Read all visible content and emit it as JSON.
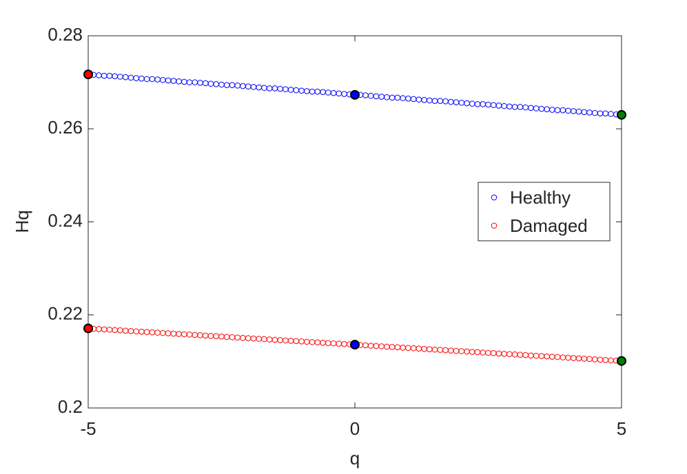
{
  "chart_data": {
    "type": "scatter",
    "x_label": "q",
    "y_label": "Hq",
    "x": [
      -5,
      -4.9,
      -4.8,
      -4.7,
      -4.6,
      -4.5,
      -4.4,
      -4.3,
      -4.2,
      -4.1,
      -4,
      -3.9,
      -3.8,
      -3.7,
      -3.6,
      -3.5,
      -3.4,
      -3.3,
      -3.2,
      -3.1,
      -3,
      -2.9,
      -2.8,
      -2.7,
      -2.6,
      -2.5,
      -2.4,
      -2.3,
      -2.2,
      -2.1,
      -2,
      -1.9,
      -1.8,
      -1.7,
      -1.6,
      -1.5,
      -1.4,
      -1.3,
      -1.2,
      -1.1,
      -1,
      -0.9,
      -0.8,
      -0.7,
      -0.6,
      -0.5,
      -0.4,
      -0.3,
      -0.2,
      -0.1,
      0,
      0.1,
      0.2,
      0.3,
      0.4,
      0.5,
      0.6,
      0.7,
      0.8,
      0.9,
      1,
      1.1,
      1.2,
      1.3,
      1.4,
      1.5,
      1.6,
      1.7,
      1.8,
      1.9,
      2,
      2.1,
      2.2,
      2.3,
      2.4,
      2.5,
      2.6,
      2.7,
      2.8,
      2.9,
      3,
      3.1,
      3.2,
      3.3,
      3.4,
      3.5,
      3.6,
      3.7,
      3.8,
      3.9,
      4,
      4.1,
      4.2,
      4.3,
      4.4,
      4.5,
      4.6,
      4.7,
      4.8,
      4.9,
      5
    ],
    "series": [
      {
        "name": "Healthy",
        "color": "#0000ff",
        "values": [
          0.2717,
          0.2716,
          0.2715,
          0.2714,
          0.2714,
          0.2713,
          0.2712,
          0.2711,
          0.271,
          0.2709,
          0.2708,
          0.2707,
          0.2707,
          0.2706,
          0.2705,
          0.2704,
          0.2703,
          0.2702,
          0.2701,
          0.27,
          0.27,
          0.2699,
          0.2698,
          0.2697,
          0.2696,
          0.2695,
          0.2694,
          0.2694,
          0.2693,
          0.2692,
          0.2691,
          0.269,
          0.2689,
          0.2688,
          0.2687,
          0.2687,
          0.2686,
          0.2685,
          0.2684,
          0.2683,
          0.2682,
          0.2681,
          0.268,
          0.268,
          0.2679,
          0.2678,
          0.2677,
          0.2676,
          0.2675,
          0.2674,
          0.2673,
          0.2673,
          0.2672,
          0.2671,
          0.267,
          0.2669,
          0.2668,
          0.2667,
          0.2667,
          0.2666,
          0.2665,
          0.2664,
          0.2663,
          0.2662,
          0.2661,
          0.266,
          0.266,
          0.2659,
          0.2658,
          0.2657,
          0.2656,
          0.2655,
          0.2654,
          0.2653,
          0.2653,
          0.2652,
          0.2651,
          0.265,
          0.2649,
          0.2648,
          0.2647,
          0.2647,
          0.2646,
          0.2645,
          0.2644,
          0.2643,
          0.2642,
          0.2641,
          0.264,
          0.264,
          0.2639,
          0.2638,
          0.2637,
          0.2636,
          0.2635,
          0.2634,
          0.2633,
          0.2633,
          0.2632,
          0.2631,
          0.263
        ]
      },
      {
        "name": "Damaged",
        "color": "#ff0000",
        "values": [
          0.2171,
          0.21703,
          0.21696,
          0.21689,
          0.21682,
          0.21675,
          0.21668,
          0.21661,
          0.21654,
          0.21647,
          0.2164,
          0.21633,
          0.21626,
          0.21619,
          0.21612,
          0.21605,
          0.21598,
          0.21591,
          0.21584,
          0.21577,
          0.2157,
          0.21563,
          0.21556,
          0.21549,
          0.21542,
          0.21535,
          0.21528,
          0.21521,
          0.21514,
          0.21507,
          0.215,
          0.21493,
          0.21486,
          0.21479,
          0.21472,
          0.21465,
          0.21458,
          0.21451,
          0.21444,
          0.21437,
          0.2143,
          0.21423,
          0.21416,
          0.21409,
          0.21402,
          0.21395,
          0.21388,
          0.21381,
          0.21374,
          0.21367,
          0.2136,
          0.21353,
          0.21346,
          0.21339,
          0.21332,
          0.21325,
          0.21318,
          0.21311,
          0.21304,
          0.21297,
          0.2129,
          0.21283,
          0.21276,
          0.21269,
          0.21262,
          0.21255,
          0.21248,
          0.21241,
          0.21234,
          0.21227,
          0.2122,
          0.21213,
          0.21206,
          0.21199,
          0.21192,
          0.21185,
          0.21178,
          0.21171,
          0.21164,
          0.21157,
          0.2115,
          0.21143,
          0.21136,
          0.21129,
          0.21122,
          0.21115,
          0.21108,
          0.21101,
          0.21094,
          0.21087,
          0.2108,
          0.21073,
          0.21066,
          0.21059,
          0.21052,
          0.21045,
          0.21038,
          0.21031,
          0.21024,
          0.21017,
          0.2101
        ]
      }
    ],
    "highlight_points": {
      "x": [
        -5,
        0,
        5
      ],
      "colors": [
        "#ff0000",
        "#0000ff",
        "#008000"
      ]
    },
    "xlim": [
      -5,
      5
    ],
    "xticks": [
      -5,
      0,
      5
    ],
    "ylim": [
      0.2,
      0.28
    ],
    "yticks": [
      0.2,
      0.22,
      0.24,
      0.26,
      0.28
    ],
    "grid": false,
    "legend_position": "east"
  }
}
